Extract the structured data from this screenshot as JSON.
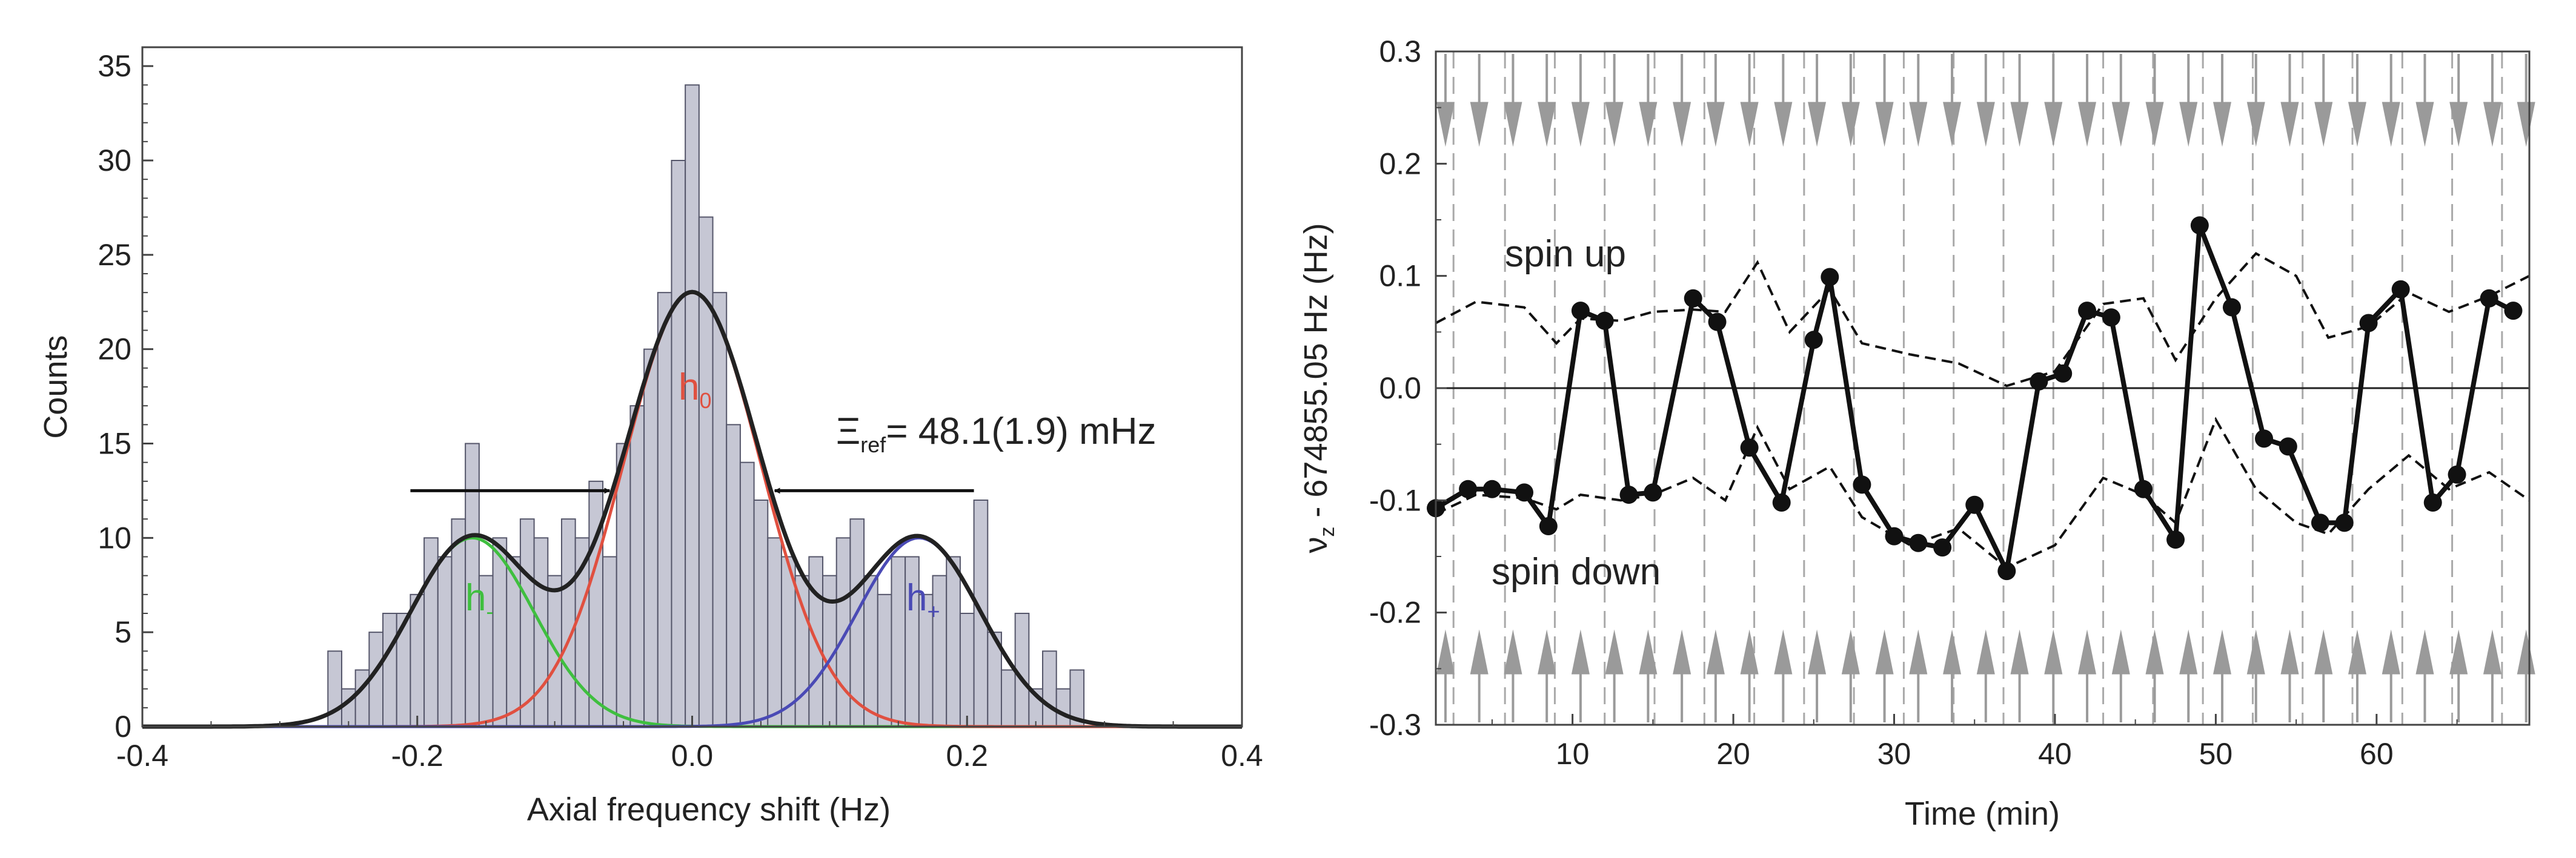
{
  "chart_data": [
    {
      "type": "bar",
      "subtype": "histogram with gaussian fits",
      "xlabel": "Axial frequency shift (Hz)",
      "ylabel": "Counts",
      "xlim": [
        -0.4,
        0.4
      ],
      "ylim": [
        0,
        36
      ],
      "xticks": [
        -0.4,
        -0.2,
        0.0,
        0.2,
        0.4
      ],
      "xtick_labels": [
        "-0.4",
        "-0.2",
        "0.0",
        "0.2",
        "0.4"
      ],
      "yticks": [
        0,
        5,
        10,
        15,
        20,
        25,
        30,
        35
      ],
      "ytick_labels": [
        "0",
        "5",
        "10",
        "15",
        "20",
        "25",
        "30",
        "35"
      ],
      "grid": false,
      "bin_width": 0.01,
      "bins": {
        "x": [
          -0.26,
          -0.25,
          -0.24,
          -0.23,
          -0.22,
          -0.21,
          -0.2,
          -0.19,
          -0.18,
          -0.17,
          -0.16,
          -0.15,
          -0.14,
          -0.13,
          -0.12,
          -0.11,
          -0.1,
          -0.09,
          -0.08,
          -0.07,
          -0.06,
          -0.05,
          -0.04,
          -0.03,
          -0.02,
          -0.01,
          0.0,
          0.01,
          0.02,
          0.03,
          0.04,
          0.05,
          0.06,
          0.07,
          0.08,
          0.09,
          0.1,
          0.11,
          0.12,
          0.13,
          0.14,
          0.15,
          0.16,
          0.17,
          0.18,
          0.19,
          0.2,
          0.21,
          0.22,
          0.23,
          0.24,
          0.25,
          0.26,
          0.27,
          0.28
        ],
        "counts": [
          4,
          2,
          3,
          5,
          6,
          6,
          7,
          10,
          9,
          11,
          15,
          8,
          10,
          9,
          11,
          10,
          8,
          11,
          10,
          13,
          9,
          15,
          17,
          20,
          23,
          30,
          34,
          27,
          23,
          16,
          14,
          12,
          10,
          9,
          8,
          9,
          8,
          10,
          11,
          8,
          7,
          9,
          9,
          7,
          8,
          9,
          6,
          12,
          5,
          3,
          6,
          2,
          4,
          2,
          3
        ]
      },
      "fits": [
        {
          "name": "h-",
          "label": "h",
          "sub": "-",
          "color": "#3fbf3f",
          "amplitude": 10,
          "center": -0.16,
          "sigma": 0.045
        },
        {
          "name": "h0",
          "label": "h",
          "sub": "0",
          "color": "#e05040",
          "amplitude": 23,
          "center": 0.0,
          "sigma": 0.05
        },
        {
          "name": "h+",
          "label": "h",
          "sub": "+",
          "color": "#4a4ab5",
          "amplitude": 10,
          "center": 0.165,
          "sigma": 0.045
        },
        {
          "name": "sum",
          "color": "#222222"
        }
      ],
      "annotation": {
        "symbol": "Ξ",
        "sub": "ref",
        "text": "= 48.1(1.9) mHz",
        "arrow_y": 12.5,
        "arrow_left_tip": -0.06,
        "arrow_right_tip": 0.06
      }
    },
    {
      "type": "line",
      "xlabel": "Time (min)",
      "ylabel": "ν",
      "ylabel_sub": "z",
      "ylabel_rest": " - 674855.05 Hz  (Hz)",
      "xlim": [
        1.5,
        69.5
      ],
      "ylim": [
        -0.3,
        0.3
      ],
      "xticks": [
        10,
        20,
        30,
        40,
        50,
        60
      ],
      "xtick_labels": [
        "10",
        "20",
        "30",
        "40",
        "50",
        "60"
      ],
      "yticks": [
        -0.3,
        -0.2,
        -0.1,
        0.0,
        0.1,
        0.2,
        0.3
      ],
      "ytick_labels": [
        "-0.3",
        "-0.2",
        "-0.1",
        "0.0",
        "0.1",
        "0.2",
        "0.3"
      ],
      "zero_line": true,
      "spin_up_label": "spin up",
      "spin_down_label": "spin down",
      "grid_vlines_x": [
        2.6,
        5.8,
        8.9,
        12.0,
        15.1,
        18.2,
        21.3,
        24.4,
        27.5,
        30.6,
        33.7,
        36.8,
        39.9,
        43.0,
        46.1,
        49.2,
        52.3,
        55.4,
        58.5,
        61.6,
        64.7,
        67.8
      ],
      "arrows_x": [
        2.1,
        4.2,
        6.3,
        8.4,
        10.5,
        12.6,
        14.7,
        16.8,
        18.9,
        21.0,
        23.1,
        25.2,
        27.3,
        29.4,
        31.5,
        33.6,
        35.7,
        37.8,
        39.9,
        42.0,
        44.1,
        46.2,
        48.3,
        50.4,
        52.5,
        54.6,
        56.7,
        58.8,
        60.9,
        63.0,
        65.1,
        67.2,
        69.3
      ],
      "series": {
        "x": [
          1.5,
          3.5,
          5.0,
          7.0,
          8.5,
          10.5,
          12.0,
          13.5,
          15.0,
          17.5,
          19.0,
          21.0,
          23.0,
          25.0,
          26.0,
          28.0,
          30.0,
          31.5,
          33.0,
          35.0,
          37.0,
          39.0,
          40.5,
          42.0,
          43.5,
          45.5,
          47.5,
          49.0,
          51.0,
          53.0,
          54.5,
          56.5,
          58.0,
          59.5,
          61.5,
          63.5,
          65.0,
          67.0,
          68.5
        ],
        "y": [
          -0.107,
          -0.09,
          -0.09,
          -0.093,
          -0.123,
          0.069,
          0.06,
          -0.095,
          -0.093,
          0.08,
          0.059,
          -0.053,
          -0.102,
          0.043,
          0.099,
          -0.086,
          -0.132,
          -0.138,
          -0.142,
          -0.104,
          -0.163,
          0.006,
          0.013,
          0.069,
          0.063,
          -0.09,
          -0.135,
          0.145,
          0.072,
          -0.045,
          -0.052,
          -0.12,
          -0.12,
          0.058,
          0.088,
          -0.102,
          -0.077,
          0.08,
          0.069
        ]
      },
      "envelope_upper": {
        "x": [
          1.5,
          4,
          7,
          9,
          10.5,
          13,
          15,
          17.5,
          19.5,
          21.5,
          23.5,
          26,
          28,
          31,
          34,
          37,
          40,
          43,
          45.5,
          47.5,
          50,
          52.5,
          55,
          57,
          59.5,
          62,
          64.5,
          67,
          69.5
        ],
        "y": [
          0.058,
          0.077,
          0.072,
          0.04,
          0.062,
          0.06,
          0.068,
          0.07,
          0.068,
          0.112,
          0.05,
          0.088,
          0.04,
          0.03,
          0.022,
          0.002,
          0.015,
          0.075,
          0.08,
          0.025,
          0.08,
          0.12,
          0.1,
          0.045,
          0.055,
          0.085,
          0.068,
          0.082,
          0.1
        ]
      },
      "envelope_lower": {
        "x": [
          1.5,
          4,
          7,
          9,
          10.5,
          13,
          15,
          17.5,
          19.5,
          21.5,
          23.5,
          26,
          28,
          31,
          34,
          37,
          40,
          43,
          45.5,
          47.5,
          50,
          52.5,
          55,
          57,
          59.5,
          62,
          64.5,
          67,
          69.5
        ],
        "y": [
          -0.112,
          -0.095,
          -0.098,
          -0.108,
          -0.095,
          -0.1,
          -0.095,
          -0.08,
          -0.1,
          -0.035,
          -0.09,
          -0.07,
          -0.115,
          -0.14,
          -0.125,
          -0.16,
          -0.14,
          -0.08,
          -0.095,
          -0.12,
          -0.028,
          -0.09,
          -0.12,
          -0.13,
          -0.09,
          -0.06,
          -0.09,
          -0.075,
          -0.1
        ]
      }
    }
  ]
}
